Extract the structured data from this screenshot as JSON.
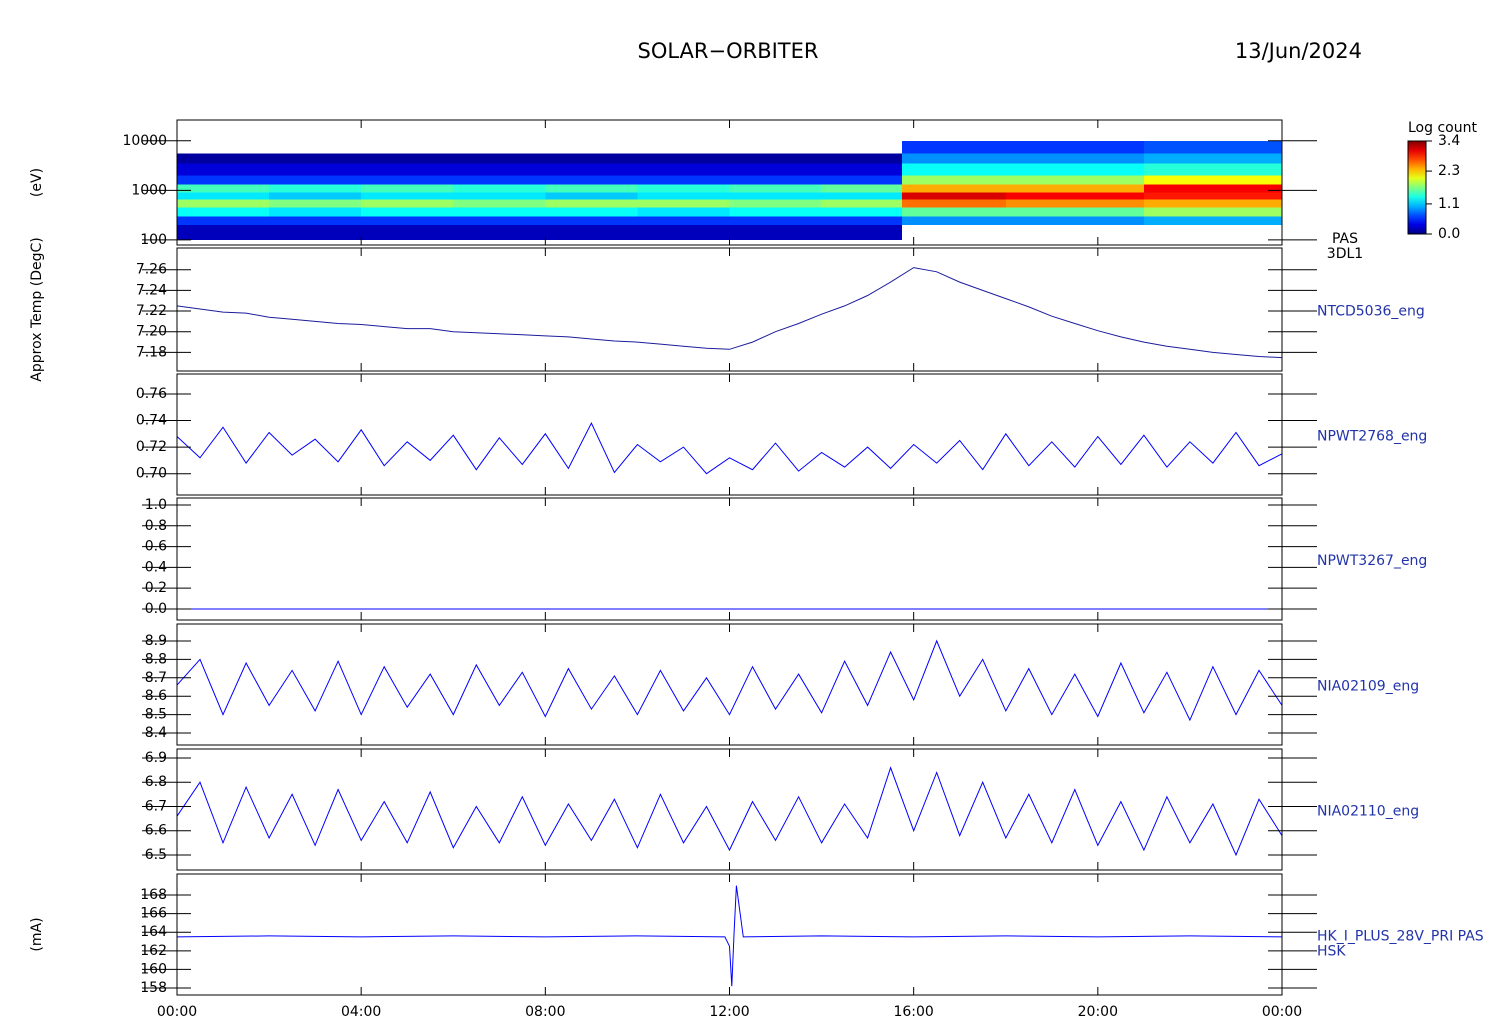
{
  "title": "SOLAR−ORBITER",
  "date": "13/Jun/2024",
  "chart_data": [
    {
      "type": "spectrogram",
      "ylabel": "(eV)",
      "log": true,
      "xlim": [
        0,
        24
      ],
      "ylim": [
        79,
        26300
      ],
      "yticks": [
        100,
        1000,
        10000
      ],
      "x_bins": [
        0,
        2,
        4,
        6,
        8,
        10,
        12,
        14,
        15.75,
        18,
        21,
        24
      ],
      "y_bins": [
        100,
        200,
        300,
        450,
        650,
        900,
        1300,
        2000,
        3500,
        5500,
        10000
      ],
      "values": [
        [
          0.2,
          0.6,
          1.3,
          1.8,
          1.2,
          1.5,
          0.6,
          0.3,
          0.1,
          null
        ],
        [
          0.2,
          0.6,
          1.2,
          1.7,
          1.1,
          1.4,
          0.6,
          0.3,
          0.1,
          null
        ],
        [
          0.2,
          0.6,
          1.3,
          1.8,
          1.2,
          1.5,
          0.6,
          0.3,
          0.1,
          null
        ],
        [
          0.2,
          0.6,
          1.3,
          1.7,
          1.2,
          1.4,
          0.6,
          0.3,
          0.1,
          null
        ],
        [
          0.2,
          0.6,
          1.3,
          1.8,
          1.1,
          1.5,
          0.6,
          0.3,
          0.1,
          null
        ],
        [
          0.2,
          0.6,
          1.2,
          1.8,
          1.2,
          1.4,
          0.6,
          0.3,
          0.1,
          null
        ],
        [
          0.2,
          0.6,
          1.3,
          1.7,
          1.2,
          1.5,
          0.6,
          0.3,
          0.1,
          null
        ],
        [
          0.2,
          0.6,
          1.3,
          1.8,
          1.2,
          1.6,
          0.6,
          0.3,
          0.1,
          null
        ],
        [
          null,
          0.9,
          1.6,
          2.6,
          3.1,
          2.4,
          1.8,
          1.3,
          0.9,
          0.6
        ],
        [
          null,
          0.9,
          1.6,
          2.5,
          3.0,
          2.4,
          1.8,
          1.3,
          0.9,
          0.6
        ],
        [
          null,
          1.0,
          1.8,
          2.4,
          2.9,
          3.0,
          2.1,
          1.4,
          1.0,
          0.7
        ]
      ],
      "colorbar": {
        "title": "Log count",
        "lim": [
          0,
          3.4
        ],
        "ticks": [
          {
            "value": 0,
            "label": "0.0"
          },
          1.1,
          2.3,
          3.4
        ]
      },
      "labels": [
        "PAS",
        "3DL1"
      ]
    },
    {
      "type": "line",
      "ylabel": "Approx Temp (DegC)",
      "xlim": [
        0,
        24
      ],
      "ylim": [
        7.162,
        7.281
      ],
      "yticks": [
        7.18,
        {
          "value": 7.2,
          "label": "7.20"
        },
        7.22,
        7.24,
        7.26
      ],
      "x": [
        0,
        0.5,
        1,
        1.5,
        2,
        2.5,
        3,
        3.5,
        4,
        4.5,
        5,
        5.5,
        6,
        6.5,
        7,
        7.5,
        8,
        8.5,
        9,
        9.5,
        10,
        10.5,
        11,
        11.5,
        12,
        12.5,
        13,
        13.5,
        14,
        14.5,
        15,
        15.5,
        16,
        16.5,
        17,
        17.5,
        18,
        18.5,
        19,
        19.5,
        20,
        20.5,
        21,
        21.5,
        22,
        22.5,
        23,
        23.5,
        24
      ],
      "series": [
        {
          "color": "#1c1c9c",
          "values": [
            7.225,
            7.222,
            7.219,
            7.218,
            7.214,
            7.212,
            7.21,
            7.208,
            7.207,
            7.205,
            7.203,
            7.203,
            7.2,
            7.199,
            7.198,
            7.197,
            7.196,
            7.195,
            7.193,
            7.191,
            7.19,
            7.188,
            7.186,
            7.184,
            7.183,
            7.19,
            7.2,
            7.208,
            7.217,
            7.225,
            7.235,
            7.248,
            7.262,
            7.258,
            7.248,
            7.24,
            7.232,
            7.224,
            7.215,
            7.208,
            7.201,
            7.195,
            7.19,
            7.186,
            7.183,
            7.18,
            7.178,
            7.176,
            7.175
          ]
        }
      ],
      "labels": [
        "NTCD5036_eng"
      ]
    },
    {
      "type": "line",
      "xlim": [
        0,
        24
      ],
      "ylim": [
        0.684,
        0.775
      ],
      "yticks": [
        {
          "value": 0.7,
          "label": "0.70"
        },
        0.72,
        0.74,
        0.76
      ],
      "x": [
        0,
        0.5,
        1,
        1.5,
        2,
        2.5,
        3,
        3.5,
        4,
        4.5,
        5,
        5.5,
        6,
        6.5,
        7,
        7.5,
        8,
        8.5,
        9,
        9.5,
        10,
        10.5,
        11,
        11.5,
        12,
        12.5,
        13,
        13.5,
        14,
        14.5,
        15,
        15.5,
        16,
        16.5,
        17,
        17.5,
        18,
        18.5,
        19,
        19.5,
        20,
        20.5,
        21,
        21.5,
        22,
        22.5,
        23,
        23.5,
        24
      ],
      "series": [
        {
          "color": "#0000ff",
          "values": [
            0.728,
            0.712,
            0.735,
            0.708,
            0.731,
            0.714,
            0.726,
            0.709,
            0.733,
            0.706,
            0.724,
            0.71,
            0.729,
            0.703,
            0.727,
            0.707,
            0.73,
            0.704,
            0.738,
            0.701,
            0.722,
            0.709,
            0.72,
            0.7,
            0.712,
            0.703,
            0.723,
            0.702,
            0.716,
            0.705,
            0.72,
            0.704,
            0.722,
            0.708,
            0.725,
            0.703,
            0.73,
            0.706,
            0.724,
            0.705,
            0.728,
            0.707,
            0.729,
            0.705,
            0.724,
            0.708,
            0.731,
            0.706,
            0.715
          ]
        }
      ],
      "labels": [
        "NPWT2768_eng"
      ]
    },
    {
      "type": "line",
      "xlim": [
        0,
        24
      ],
      "ylim": [
        -0.106,
        1.067
      ],
      "yticks": [
        {
          "value": 0,
          "label": "0.0"
        },
        0.2,
        0.4,
        0.6,
        0.8,
        {
          "value": 1,
          "label": "1.0"
        }
      ],
      "x": [
        0,
        24
      ],
      "series": [
        {
          "color": "#0000ff",
          "values": [
            0,
            0
          ]
        }
      ],
      "labels": [
        "NPWT3267_eng"
      ]
    },
    {
      "type": "line",
      "xlim": [
        0,
        24
      ],
      "ylim": [
        8.335,
        8.992
      ],
      "yticks": [
        8.4,
        8.5,
        8.6,
        8.7,
        8.8,
        8.9
      ],
      "x": [
        0,
        0.5,
        1,
        1.5,
        2,
        2.5,
        3,
        3.5,
        4,
        4.5,
        5,
        5.5,
        6,
        6.5,
        7,
        7.5,
        8,
        8.5,
        9,
        9.5,
        10,
        10.5,
        11,
        11.5,
        12,
        12.5,
        13,
        13.5,
        14,
        14.5,
        15,
        15.5,
        16,
        16.5,
        17,
        17.5,
        18,
        18.5,
        19,
        19.5,
        20,
        20.5,
        21,
        21.5,
        22,
        22.5,
        23,
        23.5,
        24
      ],
      "series": [
        {
          "color": "#0000ff",
          "values": [
            8.66,
            8.8,
            8.5,
            8.78,
            8.55,
            8.74,
            8.52,
            8.79,
            8.5,
            8.76,
            8.54,
            8.72,
            8.5,
            8.77,
            8.55,
            8.73,
            8.49,
            8.75,
            8.53,
            8.71,
            8.5,
            8.74,
            8.52,
            8.7,
            8.5,
            8.76,
            8.53,
            8.72,
            8.51,
            8.79,
            8.55,
            8.84,
            8.58,
            8.9,
            8.6,
            8.8,
            8.52,
            8.75,
            8.5,
            8.72,
            8.49,
            8.78,
            8.51,
            8.73,
            8.47,
            8.76,
            8.5,
            8.74,
            8.55
          ]
        }
      ],
      "labels": [
        "NIA02109_eng"
      ]
    },
    {
      "type": "line",
      "xlim": [
        0,
        24
      ],
      "ylim": [
        6.438,
        6.937
      ],
      "yticks": [
        6.5,
        6.6,
        6.7,
        6.8,
        6.9
      ],
      "x": [
        0,
        0.5,
        1,
        1.5,
        2,
        2.5,
        3,
        3.5,
        4,
        4.5,
        5,
        5.5,
        6,
        6.5,
        7,
        7.5,
        8,
        8.5,
        9,
        9.5,
        10,
        10.5,
        11,
        11.5,
        12,
        12.5,
        13,
        13.5,
        14,
        14.5,
        15,
        15.5,
        16,
        16.5,
        17,
        17.5,
        18,
        18.5,
        19,
        19.5,
        20,
        20.5,
        21,
        21.5,
        22,
        22.5,
        23,
        23.5,
        24
      ],
      "series": [
        {
          "color": "#0000ff",
          "values": [
            6.66,
            6.8,
            6.55,
            6.78,
            6.57,
            6.75,
            6.54,
            6.77,
            6.56,
            6.72,
            6.55,
            6.76,
            6.53,
            6.7,
            6.55,
            6.74,
            6.54,
            6.71,
            6.56,
            6.73,
            6.53,
            6.75,
            6.55,
            6.7,
            6.52,
            6.72,
            6.56,
            6.74,
            6.55,
            6.71,
            6.57,
            6.86,
            6.6,
            6.84,
            6.58,
            6.8,
            6.57,
            6.75,
            6.55,
            6.77,
            6.54,
            6.72,
            6.52,
            6.74,
            6.55,
            6.71,
            6.5,
            6.73,
            6.58
          ]
        }
      ],
      "labels": [
        "NIA02110_eng"
      ]
    },
    {
      "type": "line",
      "ylabel": "(mA)",
      "xlim": [
        0,
        24
      ],
      "ylim": [
        157.25,
        170.26
      ],
      "yticks": [
        158,
        160,
        162,
        164,
        166,
        168
      ],
      "x": [
        0,
        2,
        4,
        6,
        8,
        10,
        11.9,
        12.0,
        12.05,
        12.1,
        12.15,
        12.3,
        14,
        16,
        18,
        20,
        22,
        24
      ],
      "series": [
        {
          "color": "#0000ff",
          "values": [
            163.5,
            163.6,
            163.5,
            163.6,
            163.5,
            163.6,
            163.5,
            162.5,
            158.2,
            164,
            169,
            163.5,
            163.6,
            163.5,
            163.6,
            163.5,
            163.6,
            163.5
          ]
        }
      ],
      "labels": [
        "HK_I_PLUS_28V_PRI PAS",
        "HSK"
      ],
      "xticks": [
        {
          "value": 0,
          "label": "00:00"
        },
        {
          "value": 4,
          "label": "04:00"
        },
        {
          "value": 8,
          "label": "08:00"
        },
        {
          "value": 12,
          "label": "12:00"
        },
        {
          "value": 16,
          "label": "16:00"
        },
        {
          "value": 20,
          "label": "20:00"
        },
        {
          "value": 24,
          "label": "00:00"
        }
      ]
    }
  ]
}
